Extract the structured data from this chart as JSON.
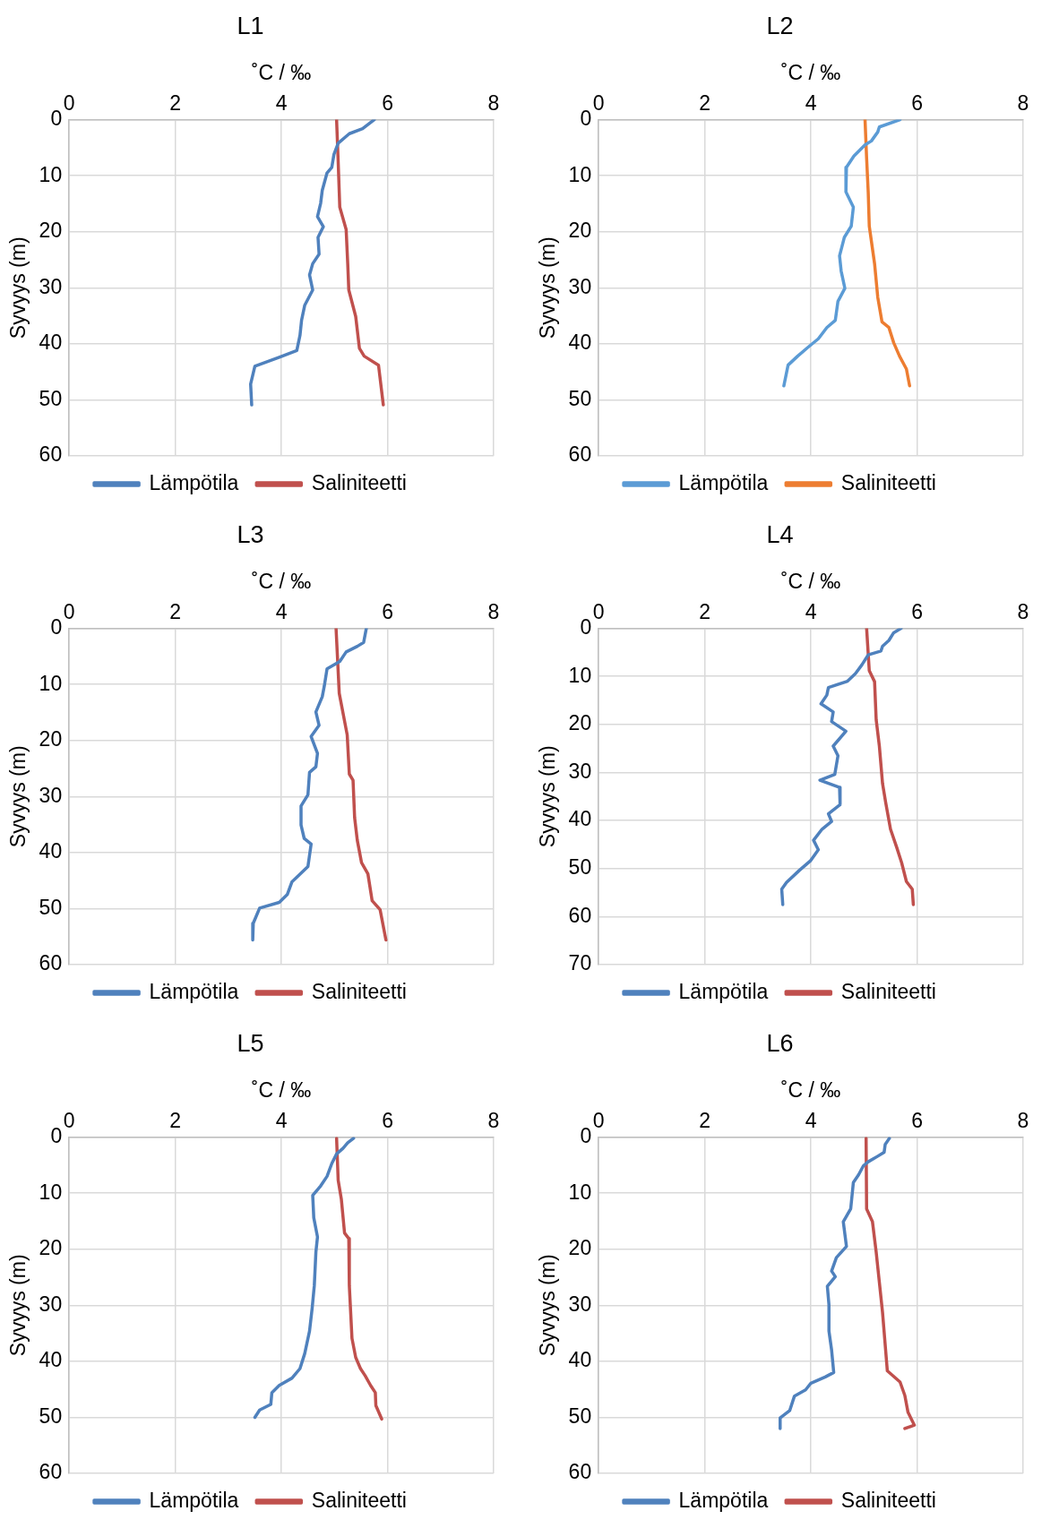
{
  "chart_data": [
    {
      "type": "line",
      "title": "L1",
      "xlabel": "˚C / ‰",
      "ylabel": "Syvyys (m)",
      "xlim": [
        0,
        8
      ],
      "xticks": [
        0,
        2,
        4,
        6,
        8
      ],
      "ylim": [
        60,
        0
      ],
      "yticks": [
        0,
        10,
        20,
        30,
        40,
        50,
        60
      ],
      "grid": true,
      "legend": "bottom",
      "series": [
        {
          "name": "Lämpötila",
          "color": "#4f81bd",
          "x": [
            5.75,
            5.53,
            5.28,
            5.07,
            4.99,
            4.95,
            4.86,
            4.77,
            4.74,
            4.68,
            4.79,
            4.69,
            4.71,
            4.59,
            4.53,
            4.59,
            4.44,
            4.38,
            4.35,
            4.29,
            3.96,
            3.5,
            3.42,
            3.44
          ],
          "values": [
            0,
            1.6,
            2.5,
            4.2,
            6.2,
            8.5,
            9.5,
            12.6,
            14.9,
            17.3,
            19.1,
            21,
            24,
            25.7,
            27.7,
            30.4,
            33.1,
            35.8,
            38.5,
            41.2,
            42.4,
            44,
            47.2,
            50.9
          ]
        },
        {
          "name": "Saliniteetti",
          "color": "#c0504d",
          "x": [
            5.04,
            5.07,
            5.1,
            5.22,
            5.25,
            5.27,
            5.4,
            5.47,
            5.56,
            5.83,
            5.92
          ],
          "values": [
            0,
            7.5,
            15.6,
            19.6,
            25.7,
            30.4,
            35.1,
            40.8,
            42.2,
            43.8,
            50.9
          ]
        }
      ]
    },
    {
      "type": "line",
      "title": "L2",
      "xlabel": "˚C / ‰",
      "ylabel": "Syvyys (m)",
      "xlim": [
        0,
        8
      ],
      "xticks": [
        0,
        2,
        4,
        6,
        8
      ],
      "ylim": [
        60,
        0
      ],
      "yticks": [
        0,
        10,
        20,
        30,
        40,
        50,
        60
      ],
      "grid": true,
      "legend": "bottom",
      "series": [
        {
          "name": "Lämpötila",
          "color": "#5b9bd5",
          "x": [
            5.68,
            5.29,
            5.26,
            5.14,
            5.02,
            4.81,
            4.67,
            4.66,
            4.8,
            4.76,
            4.63,
            4.54,
            4.57,
            4.64,
            4.51,
            4.46,
            4.3,
            4.14,
            3.96,
            3.75,
            3.57,
            3.49
          ],
          "values": [
            0,
            1.3,
            2.2,
            3.8,
            4.5,
            6.5,
            8.5,
            12.9,
            15.6,
            19,
            21,
            24.3,
            27,
            30.1,
            32.4,
            35.8,
            37.1,
            39.1,
            40.5,
            42.2,
            43.8,
            47.5
          ]
        },
        {
          "name": "Saliniteetti",
          "color": "#ed7d31",
          "x": [
            5.02,
            5.05,
            5.08,
            5.1,
            5.2,
            5.26,
            5.34,
            5.47,
            5.56,
            5.67,
            5.8,
            5.86
          ],
          "values": [
            0,
            6.9,
            12.9,
            19,
            25.7,
            31.7,
            36.1,
            37.1,
            39.8,
            42.2,
            44.5,
            47.5
          ]
        }
      ]
    },
    {
      "type": "line",
      "title": "L3",
      "xlabel": "˚C / ‰",
      "ylabel": "Syvyys (m)",
      "xlim": [
        0,
        8
      ],
      "xticks": [
        0,
        2,
        4,
        6,
        8
      ],
      "ylim": [
        60,
        0
      ],
      "yticks": [
        0,
        10,
        20,
        30,
        40,
        50,
        60
      ],
      "grid": true,
      "legend": "bottom",
      "series": [
        {
          "name": "Lämpötila",
          "color": "#4f81bd",
          "x": [
            5.6,
            5.55,
            5.43,
            5.22,
            5.1,
            4.86,
            4.81,
            4.77,
            4.65,
            4.71,
            4.56,
            4.68,
            4.65,
            4.53,
            4.5,
            4.37,
            4.37,
            4.43,
            4.56,
            4.5,
            4.2,
            4.11,
            3.96,
            3.59,
            3.47,
            3.46
          ],
          "values": [
            0,
            2.5,
            3.2,
            4.2,
            5.9,
            7.2,
            10.2,
            12.2,
            14.9,
            17.3,
            19.3,
            22.3,
            24.7,
            25.7,
            29.7,
            31.7,
            35.1,
            37.5,
            38.5,
            42.5,
            45.2,
            47.5,
            48.9,
            49.9,
            52.6,
            55.6
          ]
        },
        {
          "name": "Saliniteetti",
          "color": "#c0504d",
          "x": [
            5.03,
            5.09,
            5.24,
            5.28,
            5.35,
            5.38,
            5.43,
            5.51,
            5.63,
            5.71,
            5.86,
            5.97
          ],
          "values": [
            0,
            11.6,
            19,
            26,
            27.1,
            33.8,
            37.8,
            41.8,
            43.8,
            48.6,
            50.2,
            55.6
          ]
        }
      ]
    },
    {
      "type": "line",
      "title": "L4",
      "xlabel": "˚C / ‰",
      "ylabel": "Syvyys (m)",
      "xlim": [
        0,
        8
      ],
      "xticks": [
        0,
        2,
        4,
        6,
        8
      ],
      "ylim": [
        70,
        0
      ],
      "yticks": [
        0,
        10,
        20,
        30,
        40,
        50,
        60,
        70
      ],
      "grid": true,
      "legend": "bottom",
      "series": [
        {
          "name": "Lämpötila",
          "color": "#4f81bd",
          "x": [
            5.7,
            5.56,
            5.47,
            5.35,
            5.32,
            5.08,
            4.96,
            4.84,
            4.69,
            4.33,
            4.3,
            4.19,
            4.42,
            4.39,
            4.66,
            4.42,
            4.51,
            4.45,
            4.17,
            4.54,
            4.55,
            4.33,
            4.39,
            4.21,
            4.05,
            4.14,
            3.99,
            3.78,
            3.54,
            3.45,
            3.47
          ],
          "values": [
            0,
            0.9,
            2.5,
            3.7,
            4.7,
            5.5,
            7.6,
            9.4,
            11,
            12.3,
            13.9,
            15.7,
            17.4,
            19.4,
            21.4,
            24.5,
            26.5,
            30.4,
            31.6,
            33.1,
            36.7,
            38.6,
            40.2,
            41.8,
            44.1,
            46.1,
            48.4,
            50.4,
            52.9,
            54.3,
            57.5
          ]
        },
        {
          "name": "Saliniteetti",
          "color": "#c0504d",
          "x": [
            5.05,
            5.1,
            5.2,
            5.23,
            5.29,
            5.35,
            5.41,
            5.5,
            5.62,
            5.71,
            5.8,
            5.91,
            5.93
          ],
          "values": [
            0,
            8.8,
            11.1,
            19,
            24.5,
            32.3,
            36.3,
            41.8,
            45.7,
            48.8,
            52.7,
            54.3,
            57.5
          ]
        }
      ]
    },
    {
      "type": "line",
      "title": "L5",
      "xlabel": "˚C / ‰",
      "ylabel": "Syvyys (m)",
      "xlim": [
        0,
        8
      ],
      "xticks": [
        0,
        2,
        4,
        6,
        8
      ],
      "ylim": [
        60,
        0
      ],
      "yticks": [
        0,
        10,
        20,
        30,
        40,
        50,
        60
      ],
      "grid": true,
      "legend": "bottom",
      "series": [
        {
          "name": "Lämpötila",
          "color": "#4f81bd",
          "x": [
            5.36,
            5.25,
            5.16,
            5.04,
            4.95,
            4.86,
            4.74,
            4.59,
            4.61,
            4.68,
            4.65,
            4.62,
            4.58,
            4.53,
            4.44,
            4.35,
            4.2,
            3.96,
            3.82,
            3.8,
            3.59,
            3.5
          ],
          "values": [
            0.2,
            1,
            2,
            3,
            4.7,
            7,
            8.7,
            10.4,
            14.4,
            17.8,
            20.5,
            26.5,
            30.5,
            34.6,
            38.6,
            41.3,
            43,
            44.3,
            45.6,
            47.7,
            48.7,
            50
          ]
        },
        {
          "name": "Saliniteetti",
          "color": "#c0504d",
          "x": [
            5.04,
            5.07,
            5.13,
            5.19,
            5.27,
            5.28,
            5.33,
            5.4,
            5.49,
            5.58,
            5.68,
            5.77,
            5.78,
            5.89
          ],
          "values": [
            0.2,
            7.7,
            11.1,
            17.1,
            18.1,
            26.5,
            35.9,
            39.3,
            41.3,
            42.6,
            44.3,
            45.6,
            47.9,
            50.3
          ]
        }
      ]
    },
    {
      "type": "line",
      "title": "L6",
      "xlabel": "˚C / ‰",
      "ylabel": "Syvyys (m)",
      "xlim": [
        0,
        8
      ],
      "xticks": [
        0,
        2,
        4,
        6,
        8
      ],
      "ylim": [
        60,
        0
      ],
      "yticks": [
        0,
        10,
        20,
        30,
        40,
        50,
        60
      ],
      "grid": true,
      "legend": "bottom",
      "series": [
        {
          "name": "Lämpötila",
          "color": "#4f81bd",
          "x": [
            5.48,
            5.4,
            5.38,
            5.26,
            5.08,
            4.99,
            4.9,
            4.8,
            4.75,
            4.61,
            4.67,
            4.48,
            4.39,
            4.46,
            4.31,
            4.34,
            4.34,
            4.39,
            4.43,
            4.27,
            4,
            3.9,
            3.69,
            3.6,
            3.42,
            3.42
          ],
          "values": [
            0.2,
            1.3,
            2.7,
            3.4,
            4.4,
            5.1,
            6.7,
            8.1,
            12.8,
            15.1,
            19.5,
            21.5,
            23.9,
            24.9,
            26.6,
            29.9,
            34.6,
            38,
            42,
            42.8,
            43.9,
            45.1,
            46.2,
            48.8,
            50.1,
            52
          ]
        },
        {
          "name": "Saliniteetti",
          "color": "#c0504d",
          "x": [
            5.04,
            5.05,
            5.16,
            5.23,
            5.29,
            5.35,
            5.44,
            5.68,
            5.77,
            5.83,
            5.95,
            5.77
          ],
          "values": [
            0.2,
            12.8,
            15.1,
            20.5,
            25.9,
            31.3,
            41.7,
            43.7,
            46.1,
            49.1,
            51.4,
            52
          ]
        }
      ]
    }
  ]
}
